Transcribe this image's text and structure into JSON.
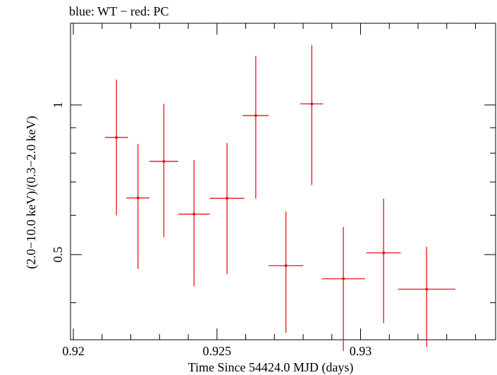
{
  "header": {
    "title": "blue: WT − red: PC"
  },
  "chart_data": {
    "type": "scatter",
    "title": "blue: WT − red: PC",
    "xlabel": "Time Since 54424.0 MJD (days)",
    "ylabel": "(2.0−10.0 keV)/(0.3−2.0 keV)",
    "xlim": [
      0.9199,
      0.9347
    ],
    "ylim": [
      0.337,
      1.46
    ],
    "yscale": "log",
    "x_ticks": [
      0.92,
      0.925,
      0.93
    ],
    "x_tick_labels": [
      "0.92",
      "0.925",
      "0.93"
    ],
    "y_ticks": [
      0.5,
      1
    ],
    "y_tick_labels": [
      "0.5",
      "1"
    ],
    "color": "#e8141c",
    "series": [
      {
        "name": "PC",
        "points": [
          {
            "x": 0.9215,
            "xerr": 0.0004,
            "y": 0.86,
            "ylo": 0.6,
            "yhi": 1.125
          },
          {
            "x": 0.92225,
            "xerr": 0.0004,
            "y": 0.65,
            "ylo": 0.468,
            "yhi": 0.835
          },
          {
            "x": 0.92315,
            "xerr": 0.0005,
            "y": 0.77,
            "ylo": 0.542,
            "yhi": 1.005
          },
          {
            "x": 0.9242,
            "xerr": 0.00055,
            "y": 0.603,
            "ylo": 0.432,
            "yhi": 0.775
          },
          {
            "x": 0.92535,
            "xerr": 0.0006,
            "y": 0.649,
            "ylo": 0.457,
            "yhi": 0.838
          },
          {
            "x": 0.92635,
            "xerr": 0.00045,
            "y": 0.952,
            "ylo": 0.648,
            "yhi": 1.255
          },
          {
            "x": 0.9274,
            "xerr": 0.0006,
            "y": 0.475,
            "ylo": 0.348,
            "yhi": 0.61
          },
          {
            "x": 0.9283,
            "xerr": 0.0004,
            "y": 1.005,
            "ylo": 0.69,
            "yhi": 1.32
          },
          {
            "x": 0.9294,
            "xerr": 0.00075,
            "y": 0.447,
            "ylo": 0.32,
            "yhi": 0.568
          },
          {
            "x": 0.9308,
            "xerr": 0.0006,
            "y": 0.504,
            "ylo": 0.364,
            "yhi": 0.648
          },
          {
            "x": 0.9323,
            "xerr": 0.001,
            "y": 0.426,
            "ylo": 0.326,
            "yhi": 0.518
          }
        ]
      }
    ]
  }
}
